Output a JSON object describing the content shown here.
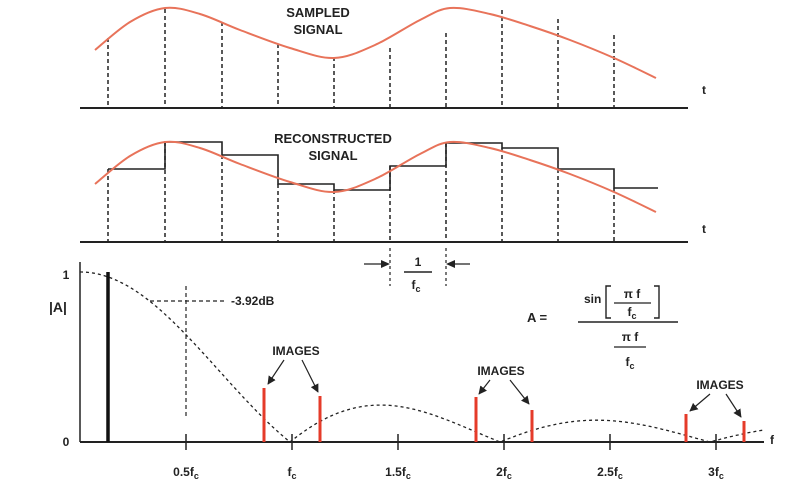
{
  "panel_sampled": {
    "title_line1": "SAMPLED",
    "title_line2": "SIGNAL",
    "axis_label": "t"
  },
  "panel_reconstructed": {
    "title_line1": "RECONSTRUCTED",
    "title_line2": "SIGNAL",
    "axis_label": "t",
    "period_numerator": "1",
    "period_denominator_base": "f",
    "period_denominator_sub": "c"
  },
  "panel_spectrum": {
    "y_axis_label": "|A|",
    "y_tick_top": "1",
    "y_tick_bottom": "0",
    "x_axis_label": "f",
    "attenuation_label": "-3.92dB",
    "images_label": "IMAGES",
    "formula": {
      "lhs": "A =",
      "sin": "sin",
      "pi_f": "π f",
      "fc_base": "f",
      "fc_sub": "c"
    },
    "x_ticks": [
      {
        "base": "0.5f",
        "sub": "c"
      },
      {
        "base": "f",
        "sub": "c"
      },
      {
        "base": "1.5f",
        "sub": "c"
      },
      {
        "base": "2f",
        "sub": "c"
      },
      {
        "base": "2.5f",
        "sub": "c"
      },
      {
        "base": "3f",
        "sub": "c"
      }
    ]
  },
  "colors": {
    "signal": "#e8735a",
    "image_line": "#e53b2a",
    "ink": "#222222"
  }
}
